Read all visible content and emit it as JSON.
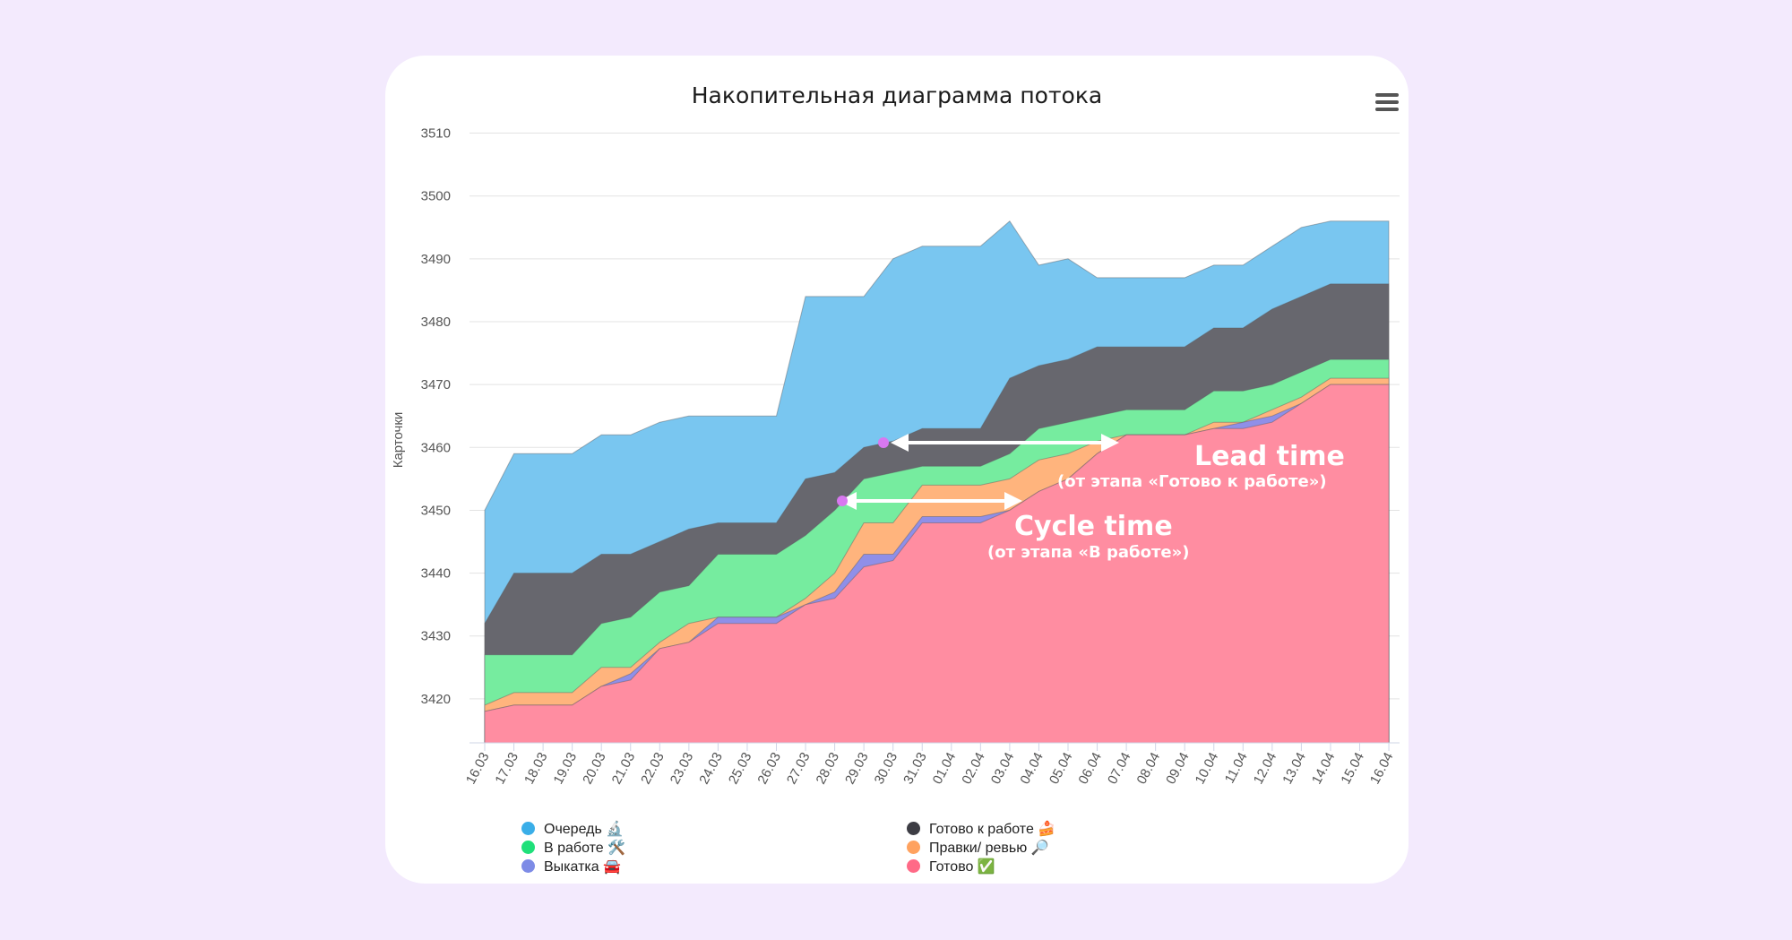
{
  "chart_data": {
    "type": "area",
    "stacked": true,
    "title": "Накопительная диаграмма потока",
    "ylabel": "Карточки",
    "xlabel": "",
    "ylim": [
      3413,
      3510
    ],
    "yticks": [
      3420,
      3430,
      3440,
      3450,
      3460,
      3470,
      3480,
      3490,
      3500,
      3510
    ],
    "grid": true,
    "legend_position": "bottom",
    "categories": [
      "16.03",
      "17.03",
      "18.03",
      "19.03",
      "20.03",
      "21.03",
      "22.03",
      "23.03",
      "24.03",
      "25.03",
      "26.03",
      "27.03",
      "28.03",
      "29.03",
      "30.03",
      "31.03",
      "01.04",
      "02.04",
      "03.04",
      "04.04",
      "05.04",
      "06.04",
      "07.04",
      "08.04",
      "09.04",
      "10.04",
      "11.04",
      "12.04",
      "13.04",
      "14.04",
      "15.04",
      "16.04"
    ],
    "series": [
      {
        "name": "Готово ✅",
        "color": "#ff8da1",
        "values": [
          3418,
          3419,
          3419,
          3419,
          3422,
          3423,
          3428,
          3429,
          3432,
          3432,
          3432,
          3435,
          3436,
          3441,
          3442,
          3448,
          3448,
          3448,
          3450,
          3453,
          3455,
          3459,
          3462,
          3462,
          3462,
          3463,
          3463,
          3464,
          3467,
          3470,
          3470,
          3470
        ]
      },
      {
        "name": "Выкатка 🚘",
        "color": "#8f8fe8",
        "values": [
          3418,
          3419,
          3419,
          3419,
          3422,
          3424,
          3428,
          3429,
          3433,
          3433,
          3433,
          3435,
          3437,
          3443,
          3443,
          3449,
          3449,
          3449,
          3450,
          3453,
          3455,
          3459,
          3462,
          3462,
          3462,
          3463,
          3464,
          3465,
          3467,
          3470,
          3470,
          3470
        ]
      },
      {
        "name": "Правки/ ревью 🔎",
        "color": "#ffb47d",
        "values": [
          3419,
          3421,
          3421,
          3421,
          3425,
          3425,
          3429,
          3432,
          3433,
          3433,
          3433,
          3436,
          3440,
          3448,
          3448,
          3454,
          3454,
          3454,
          3455,
          3458,
          3459,
          3461,
          3462,
          3462,
          3462,
          3464,
          3464,
          3466,
          3468,
          3471,
          3471,
          3471
        ]
      },
      {
        "name": "В работе 🛠️",
        "color": "#76ec9f",
        "values": [
          3427,
          3427,
          3427,
          3427,
          3432,
          3433,
          3437,
          3438,
          3443,
          3443,
          3443,
          3446,
          3450,
          3455,
          3456,
          3457,
          3457,
          3457,
          3459,
          3463,
          3464,
          3465,
          3466,
          3466,
          3466,
          3469,
          3469,
          3470,
          3472,
          3474,
          3474,
          3474
        ]
      },
      {
        "name": "Готово к работе 🍰",
        "color": "#67676e",
        "values": [
          3432,
          3440,
          3440,
          3440,
          3443,
          3443,
          3445,
          3447,
          3448,
          3448,
          3448,
          3455,
          3456,
          3460,
          3461,
          3463,
          3463,
          3463,
          3471,
          3473,
          3474,
          3476,
          3476,
          3476,
          3476,
          3479,
          3479,
          3482,
          3484,
          3486,
          3486,
          3486
        ]
      },
      {
        "name": "Очередь 🔬",
        "color": "#79c6f0",
        "values": [
          3450,
          3459,
          3459,
          3459,
          3462,
          3462,
          3464,
          3465,
          3465,
          3465,
          3465,
          3484,
          3484,
          3484,
          3490,
          3492,
          3492,
          3492,
          3496,
          3489,
          3490,
          3487,
          3487,
          3487,
          3487,
          3489,
          3489,
          3492,
          3495,
          3496,
          3496,
          3496
        ]
      }
    ],
    "annotations": [
      {
        "title": "Lead time",
        "subtitle": "(от этапа «Готово к работе»)"
      },
      {
        "title": "Cycle time",
        "subtitle": "(от этапа «В работе»)"
      }
    ]
  },
  "legend": [
    {
      "label": "Очередь 🔬",
      "color": "#3aaee8"
    },
    {
      "label": "В работе 🛠️",
      "color": "#1fe07a"
    },
    {
      "label": "Выкатка 🚘",
      "color": "#7d8be6"
    },
    {
      "label": "Готово к работе 🍰",
      "color": "#3d3d44"
    },
    {
      "label": "Правки/ ревью 🔎",
      "color": "#ffa25f"
    },
    {
      "label": "Готово ✅",
      "color": "#ff6a87"
    }
  ],
  "menu_icon": "hamburger-menu-icon"
}
